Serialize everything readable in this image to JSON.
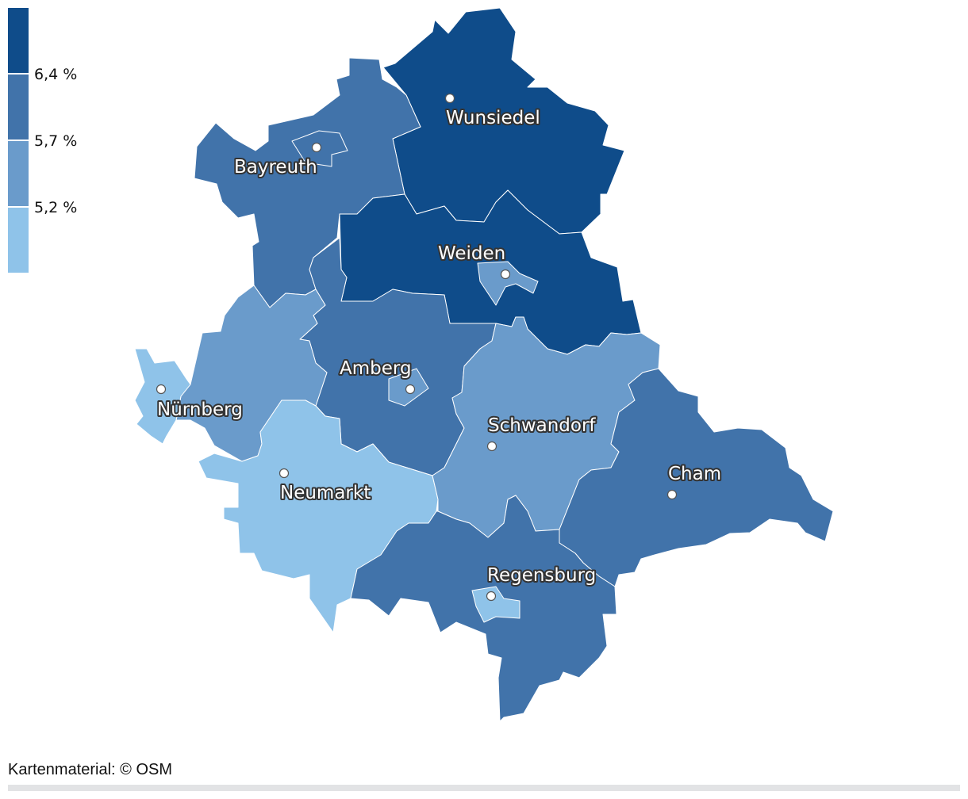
{
  "legend": {
    "colors": [
      "#8fc3e9",
      "#6a9bcb",
      "#4173aa",
      "#0f4c8a"
    ],
    "thresholds": [
      "5,2 %",
      "5,7 %",
      "6,4 %"
    ]
  },
  "cities": {
    "wunsiedel": "Wunsiedel",
    "bayreuth": "Bayreuth",
    "weiden": "Weiden",
    "amberg": "Amberg",
    "nuernberg": "Nürnberg",
    "schwandorf": "Schwandorf",
    "cham": "Cham",
    "neumarkt": "Neumarkt",
    "regensburg": "Regensburg"
  },
  "source": "Kartenmaterial: © OSM"
}
